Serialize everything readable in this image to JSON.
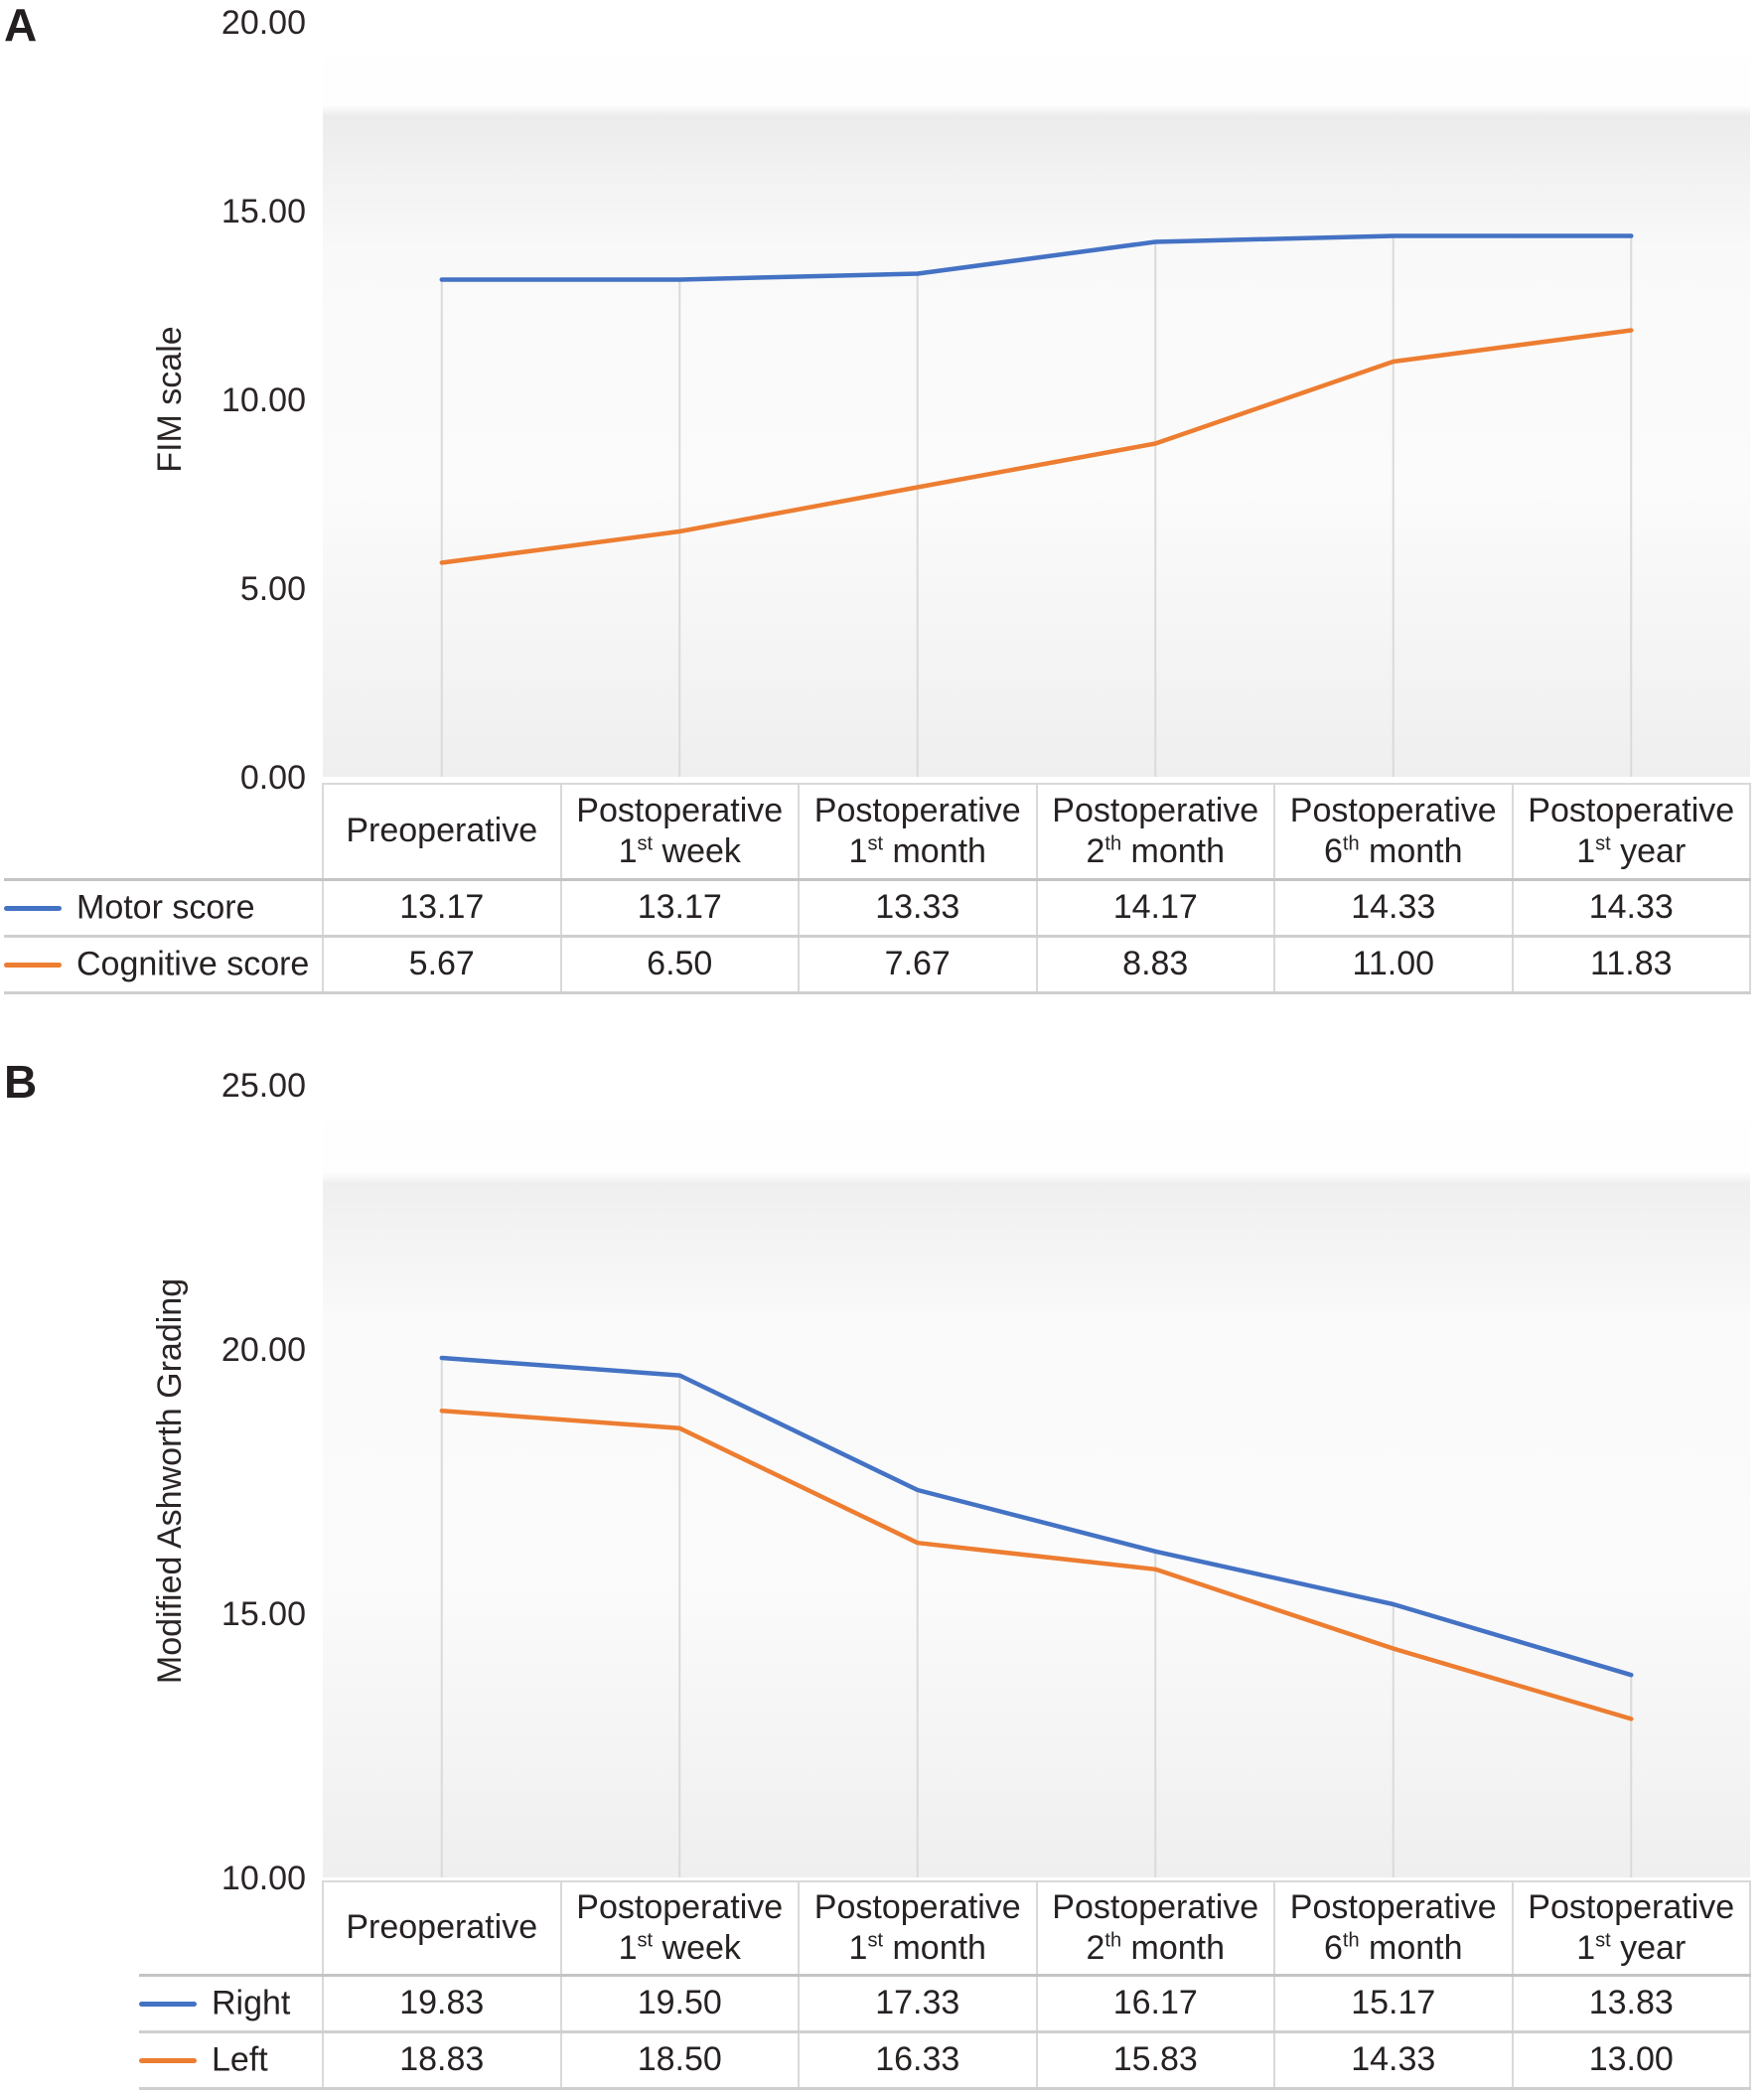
{
  "figure": {
    "background": "#ffffff"
  },
  "panels": [
    {
      "label": "A"
    },
    {
      "label": "B"
    }
  ],
  "colors": {
    "series1": "#4472C4",
    "series2": "#ED7D31",
    "drop_line": "#dadada",
    "table_border": "#d9d9d9"
  },
  "chart_data": [
    {
      "type": "line",
      "panel": "A",
      "title": "",
      "xlabel": "",
      "ylabel": "FIM scale",
      "ylim": [
        0,
        20
      ],
      "yticks": [
        20,
        15,
        10,
        5,
        0
      ],
      "tick_decimals": 2,
      "grid": "category-drop-lines",
      "legend_position": "table-left",
      "categories": [
        "Preoperative",
        "Postoperative 1st week",
        "Postoperative 1st month",
        "Postoperative 2th month",
        "Postoperative 6th month",
        "Postoperative 1st year"
      ],
      "categories_rich": [
        {
          "line1": "Preoperative"
        },
        {
          "line1": "Postoperative",
          "num": "1",
          "sup": "st",
          "rest": " week"
        },
        {
          "line1": "Postoperative",
          "num": "1",
          "sup": "st",
          "rest": " month"
        },
        {
          "line1": "Postoperative",
          "num": "2",
          "sup": "th",
          "rest": " month"
        },
        {
          "line1": "Postoperative",
          "num": "6",
          "sup": "th",
          "rest": " month"
        },
        {
          "line1": "Postoperative",
          "num": "1",
          "sup": "st",
          "rest": " year"
        }
      ],
      "series": [
        {
          "name": "Motor score",
          "color": "#4472C4",
          "values": [
            13.17,
            13.17,
            13.33,
            14.17,
            14.33,
            14.33
          ]
        },
        {
          "name": "Cognitive score",
          "color": "#ED7D31",
          "values": [
            5.67,
            6.5,
            7.67,
            8.83,
            11.0,
            11.83
          ]
        }
      ]
    },
    {
      "type": "line",
      "panel": "B",
      "title": "",
      "xlabel": "",
      "ylabel": "Modified Ashworth Grading",
      "ylim": [
        10,
        25
      ],
      "yticks": [
        25,
        20,
        15,
        10
      ],
      "tick_decimals": 2,
      "grid": "category-drop-lines",
      "legend_position": "table-left",
      "categories": [
        "Preoperative",
        "Postoperative 1st week",
        "Postoperative 1st month",
        "Postoperative 2th month",
        "Postoperative 6th month",
        "Postoperative 1st year"
      ],
      "categories_rich": [
        {
          "line1": "Preoperative"
        },
        {
          "line1": "Postoperative",
          "num": "1",
          "sup": "st",
          "rest": " week"
        },
        {
          "line1": "Postoperative",
          "num": "1",
          "sup": "st",
          "rest": " month"
        },
        {
          "line1": "Postoperative",
          "num": "2",
          "sup": "th",
          "rest": " month"
        },
        {
          "line1": "Postoperative",
          "num": "6",
          "sup": "th",
          "rest": " month"
        },
        {
          "line1": "Postoperative",
          "num": "1",
          "sup": "st",
          "rest": " year"
        }
      ],
      "series": [
        {
          "name": "Right",
          "color": "#4472C4",
          "values": [
            19.83,
            19.5,
            17.33,
            16.17,
            15.17,
            13.83
          ]
        },
        {
          "name": "Left",
          "color": "#ED7D31",
          "values": [
            18.83,
            18.5,
            16.33,
            15.83,
            14.33,
            13.0
          ]
        }
      ]
    }
  ]
}
